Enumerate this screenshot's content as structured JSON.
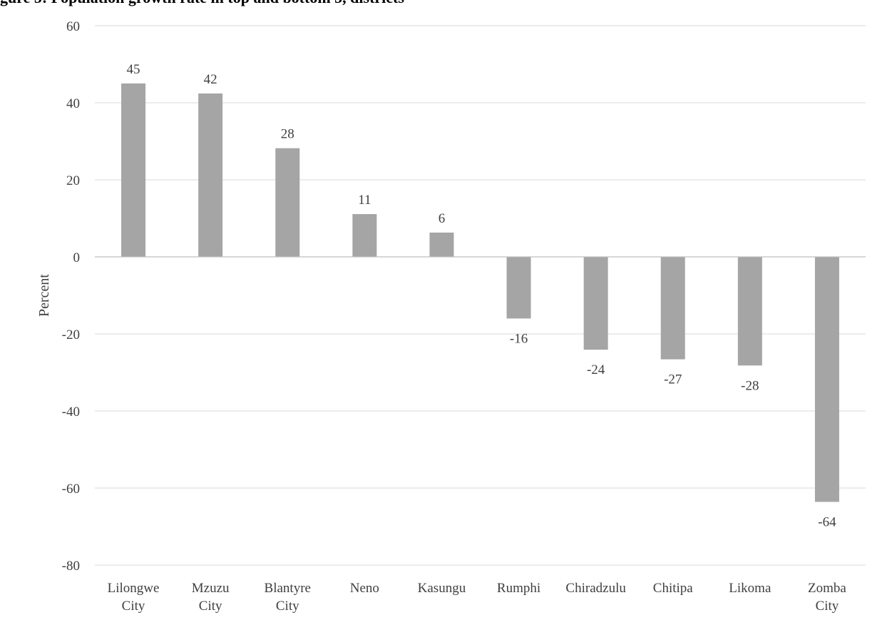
{
  "title_fragment": "gure 5: Population growth rate in top and bottom 5, districts",
  "chart_data": {
    "type": "bar",
    "categories": [
      [
        "Lilongwe",
        "City"
      ],
      [
        "Mzuzu",
        "City"
      ],
      [
        "Blantyre",
        "City"
      ],
      [
        "Neno"
      ],
      [
        "Kasungu"
      ],
      [
        "Rumphi"
      ],
      [
        "Chiradzulu"
      ],
      [
        "Chitipa"
      ],
      [
        "Likoma"
      ],
      [
        "Zomba",
        "City"
      ]
    ],
    "values": [
      45,
      42.4,
      28.2,
      11.1,
      6.3,
      -16,
      -24.1,
      -26.6,
      -28.2,
      -63.6
    ],
    "data_labels": [
      "45",
      "42",
      "28",
      "11",
      "6",
      "-16",
      "-24",
      "-27",
      "-28",
      "-64"
    ],
    "ylabel": "Percent",
    "ylim": [
      -80,
      60
    ],
    "yticks": [
      60,
      40,
      20,
      0,
      -20,
      -40,
      -60,
      -80
    ],
    "grid": true,
    "bar_color": "#a5a5a5",
    "grid_color": "#d9d9d9",
    "axis_color": "#bfbfbf"
  }
}
